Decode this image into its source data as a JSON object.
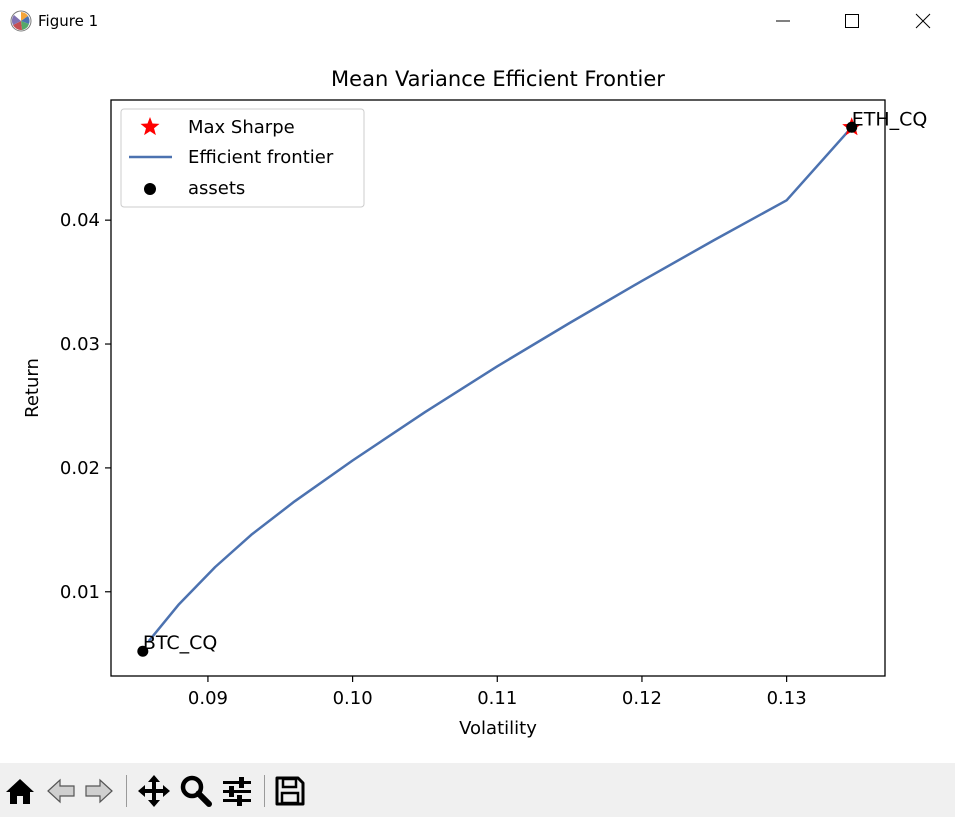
{
  "window": {
    "title": "Figure 1",
    "icons": [
      "matplotlib-logo-icon",
      "minimize-icon",
      "maximize-icon",
      "close-icon"
    ]
  },
  "toolbar": {
    "icons": [
      "home-icon",
      "back-arrow-icon",
      "forward-arrow-icon",
      "pan-move-icon",
      "zoom-magnifier-icon",
      "configure-subplots-icon",
      "save-floppy-icon"
    ]
  },
  "chart_data": {
    "type": "line",
    "title": "Mean Variance Efficient Frontier",
    "xlabel": "Volatility",
    "ylabel": "Return",
    "xlim": [
      0.0833,
      0.1368
    ],
    "ylim": [
      0.0032,
      0.0497
    ],
    "xticks": [
      0.09,
      0.1,
      0.11,
      0.12,
      0.13
    ],
    "xtick_labels": [
      "0.09",
      "0.10",
      "0.11",
      "0.12",
      "0.13"
    ],
    "yticks": [
      0.01,
      0.02,
      0.03,
      0.04
    ],
    "ytick_labels": [
      "0.01",
      "0.02",
      "0.03",
      "0.04"
    ],
    "grid": false,
    "legend_placement": "upper-left",
    "legend": [
      {
        "label": "Max Sharpe",
        "marker": "star",
        "color": "#ff0000"
      },
      {
        "label": "Efficient frontier",
        "marker": "line",
        "color": "#4c72b0"
      },
      {
        "label": "assets",
        "marker": "dot",
        "color": "#000000"
      }
    ],
    "series": [
      {
        "name": "Efficient frontier",
        "color": "#4c72b0",
        "x": [
          0.0859,
          0.088,
          0.0905,
          0.093,
          0.096,
          0.1,
          0.105,
          0.11,
          0.115,
          0.12,
          0.125,
          0.13,
          0.1345
        ],
        "y": [
          0.006,
          0.009,
          0.012,
          0.0146,
          0.0173,
          0.0206,
          0.0245,
          0.0282,
          0.0317,
          0.0351,
          0.0384,
          0.0416,
          0.0475
        ]
      }
    ],
    "assets": [
      {
        "label": "BTC_CQ",
        "x": 0.0855,
        "y": 0.0052
      },
      {
        "label": "ETH_CQ",
        "x": 0.1345,
        "y": 0.0475
      }
    ],
    "max_sharpe": {
      "x": 0.1345,
      "y": 0.0475,
      "color": "#ff0000"
    }
  }
}
